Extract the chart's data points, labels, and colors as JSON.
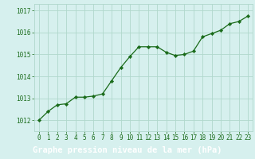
{
  "x": [
    0,
    1,
    2,
    3,
    4,
    5,
    6,
    7,
    8,
    9,
    10,
    11,
    12,
    13,
    14,
    15,
    16,
    17,
    18,
    19,
    20,
    21,
    22,
    23
  ],
  "y": [
    1012.0,
    1012.4,
    1012.7,
    1012.75,
    1013.05,
    1013.05,
    1013.1,
    1013.2,
    1013.8,
    1014.4,
    1014.9,
    1015.35,
    1015.35,
    1015.35,
    1015.1,
    1014.95,
    1015.0,
    1015.15,
    1015.8,
    1015.95,
    1016.1,
    1016.4,
    1016.5,
    1016.75
  ],
  "line_color": "#1a6b1a",
  "marker_color": "#1a6b1a",
  "bg_color": "#d6f0ee",
  "grid_color": "#b0d8cc",
  "xlabel": "Graphe pression niveau de la mer (hPa)",
  "xlabel_color": "#1a5c1a",
  "ylabel_ticks": [
    1012,
    1013,
    1014,
    1015,
    1016,
    1017
  ],
  "ylim": [
    1011.5,
    1017.3
  ],
  "xlim": [
    -0.5,
    23.5
  ],
  "xticks": [
    0,
    1,
    2,
    3,
    4,
    5,
    6,
    7,
    8,
    9,
    10,
    11,
    12,
    13,
    14,
    15,
    16,
    17,
    18,
    19,
    20,
    21,
    22,
    23
  ],
  "tick_fontsize": 5.5,
  "xlabel_fontsize": 7.5,
  "bottom_bar_color": "#2a7a2a",
  "bottom_text_color": "#ffffff"
}
